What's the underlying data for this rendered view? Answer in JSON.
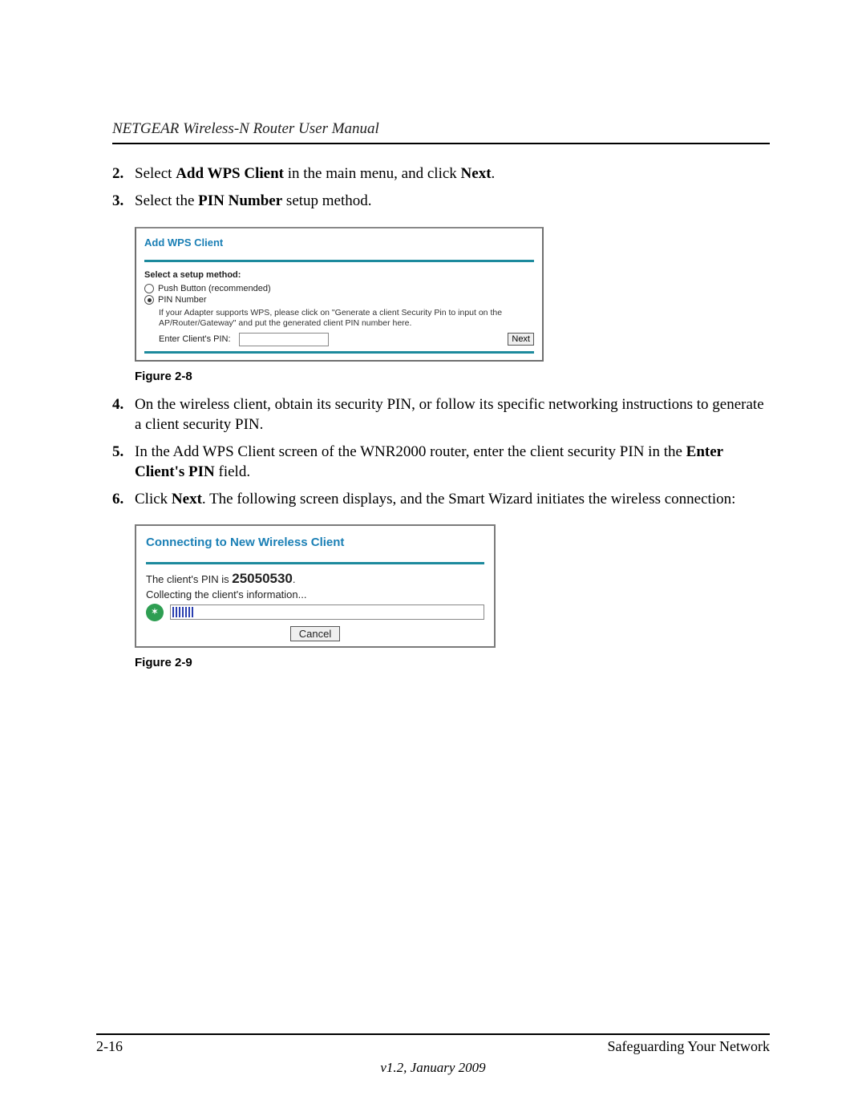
{
  "header": {
    "running_title": "NETGEAR Wireless-N Router User Manual"
  },
  "steps": {
    "s2": {
      "num": "2.",
      "pre": "Select ",
      "bold1": "Add WPS Client",
      "mid": " in the main menu, and click ",
      "bold2": "Next",
      "post": "."
    },
    "s3": {
      "num": "3.",
      "pre": "Select the ",
      "bold1": "PIN Number",
      "post": " setup method."
    },
    "s4": {
      "num": "4.",
      "text": "On the wireless client, obtain its security PIN, or follow its specific networking instructions to generate a client security PIN."
    },
    "s5": {
      "num": "5.",
      "pre": "In the Add WPS Client screen of the WNR2000 router, enter the client security PIN in the ",
      "bold1": "Enter Client's PIN",
      "post": " field."
    },
    "s6": {
      "num": "6.",
      "pre": "Click ",
      "bold1": "Next",
      "post": ". The following screen displays, and the Smart Wizard initiates the wireless connection:"
    }
  },
  "fig28": {
    "title": "Add WPS Client",
    "setup_label": "Select a setup method:",
    "opt_push": "Push Button (recommended)",
    "opt_pin": "PIN Number",
    "help": "If your Adapter supports WPS, please click on \"Generate a client Security Pin to input on the AP/Router/Gateway\" and put the generated client PIN number here.",
    "enter_pin_label": "Enter Client's PIN:",
    "next_label": "Next",
    "caption": "Figure 2-8",
    "colors": {
      "accent": "#1d8a9d",
      "title": "#1a7fb5"
    }
  },
  "fig29": {
    "title": "Connecting to New Wireless Client",
    "pin_prefix": "The client's PIN is ",
    "pin_value": "25050530",
    "pin_suffix": ".",
    "collecting": "Collecting the client's information...",
    "cancel_label": "Cancel",
    "caption": "Figure 2-9"
  },
  "footer": {
    "page_num": "2-16",
    "section": "Safeguarding Your Network",
    "version": "v1.2, January 2009"
  }
}
